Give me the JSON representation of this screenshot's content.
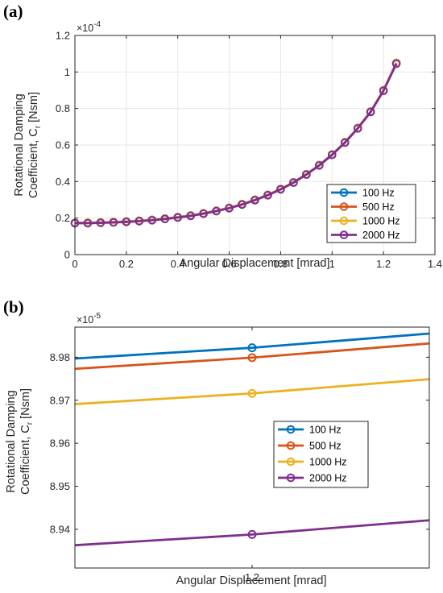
{
  "colors": {
    "100 Hz": "#0072BD",
    "500 Hz": "#D95319",
    "1000 Hz": "#EDB120",
    "2000 Hz": "#7E2F8E"
  },
  "chart_data": [
    {
      "type": "line",
      "panel": "(a)",
      "xlabel": "Angular Displacement [mrad]",
      "ylabel_line1": "Rotational Damping",
      "ylabel_line2": "Coefficient, C",
      "ylabel_sub": "r",
      "ylabel_unit": " [Nsm]",
      "exponent_base": "×10",
      "exponent_power": "-4",
      "xlim": [
        0,
        1.4
      ],
      "ylim": [
        0,
        1.2
      ],
      "xticks": [
        0,
        0.2,
        0.4,
        0.6,
        0.8,
        1,
        1.2,
        1.4
      ],
      "xtick_labels": [
        "0",
        "0.2",
        "0.4",
        "0.6",
        "0.8",
        "1",
        "1.2",
        "1.4"
      ],
      "yticks": [
        0,
        0.2,
        0.4,
        0.6,
        0.8,
        1,
        1.2
      ],
      "ytick_labels": [
        "0",
        "0.2",
        "0.4",
        "0.6",
        "0.8",
        "1",
        "1.2"
      ],
      "grid": true,
      "legend_position": "lower-right",
      "x": [
        0,
        0.05,
        0.1,
        0.15,
        0.2,
        0.25,
        0.3,
        0.35,
        0.4,
        0.45,
        0.5,
        0.55,
        0.6,
        0.65,
        0.7,
        0.75,
        0.8,
        0.85,
        0.9,
        0.95,
        1.0,
        1.05,
        1.1,
        1.15,
        1.2,
        1.25
      ],
      "series": [
        {
          "name": "100 Hz",
          "values": [
            0.174,
            0.174,
            0.176,
            0.178,
            0.181,
            0.185,
            0.19,
            0.197,
            0.205,
            0.214,
            0.226,
            0.24,
            0.256,
            0.276,
            0.3,
            0.327,
            0.359,
            0.396,
            0.44,
            0.49,
            0.548,
            0.615,
            0.693,
            0.783,
            0.9,
            1.05
          ]
        },
        {
          "name": "500 Hz",
          "values": [
            0.174,
            0.174,
            0.176,
            0.178,
            0.181,
            0.185,
            0.19,
            0.197,
            0.205,
            0.214,
            0.226,
            0.24,
            0.256,
            0.276,
            0.3,
            0.327,
            0.359,
            0.396,
            0.44,
            0.49,
            0.548,
            0.615,
            0.693,
            0.783,
            0.9,
            1.05
          ]
        },
        {
          "name": "1000 Hz",
          "values": [
            0.174,
            0.174,
            0.176,
            0.178,
            0.181,
            0.185,
            0.19,
            0.197,
            0.205,
            0.214,
            0.226,
            0.24,
            0.256,
            0.276,
            0.3,
            0.327,
            0.359,
            0.396,
            0.44,
            0.49,
            0.548,
            0.615,
            0.693,
            0.783,
            0.9,
            1.05
          ]
        },
        {
          "name": "2000 Hz",
          "values": [
            0.172,
            0.172,
            0.174,
            0.176,
            0.179,
            0.183,
            0.188,
            0.195,
            0.203,
            0.212,
            0.224,
            0.238,
            0.254,
            0.274,
            0.298,
            0.325,
            0.357,
            0.394,
            0.438,
            0.488,
            0.546,
            0.613,
            0.691,
            0.781,
            0.897,
            1.045
          ]
        }
      ]
    },
    {
      "type": "line",
      "panel": "(b)",
      "xlabel": "Angular Displacement [mrad]",
      "ylabel_line1": "Rotational Damping",
      "ylabel_line2": "Coefficient, C",
      "ylabel_sub": "r",
      "ylabel_unit": " [Nsm]",
      "exponent_base": "×10",
      "exponent_power": "-5",
      "xlim": [
        1.1996,
        1.2004
      ],
      "ylim": [
        8.931,
        8.987
      ],
      "xticks": [
        1.2
      ],
      "xtick_labels": [
        "1.2"
      ],
      "yticks": [
        8.94,
        8.95,
        8.96,
        8.97,
        8.98
      ],
      "ytick_labels": [
        "8.94",
        "8.95",
        "8.96",
        "8.97",
        "8.98"
      ],
      "grid": false,
      "legend_position": "lower-right",
      "marker_x": 1.2,
      "series": [
        {
          "name": "100 Hz",
          "x": [
            1.1996,
            1.2,
            1.2004
          ],
          "values": [
            8.9797,
            8.9822,
            8.9855
          ]
        },
        {
          "name": "500 Hz",
          "x": [
            1.1996,
            1.2,
            1.2004
          ],
          "values": [
            8.9773,
            8.9799,
            8.9832
          ]
        },
        {
          "name": "1000 Hz",
          "x": [
            1.1996,
            1.2,
            1.2004
          ],
          "values": [
            8.9691,
            8.9716,
            8.9749
          ]
        },
        {
          "name": "2000 Hz",
          "x": [
            1.1996,
            1.2,
            1.2004
          ],
          "values": [
            8.9363,
            8.9388,
            8.9421
          ]
        }
      ]
    }
  ]
}
